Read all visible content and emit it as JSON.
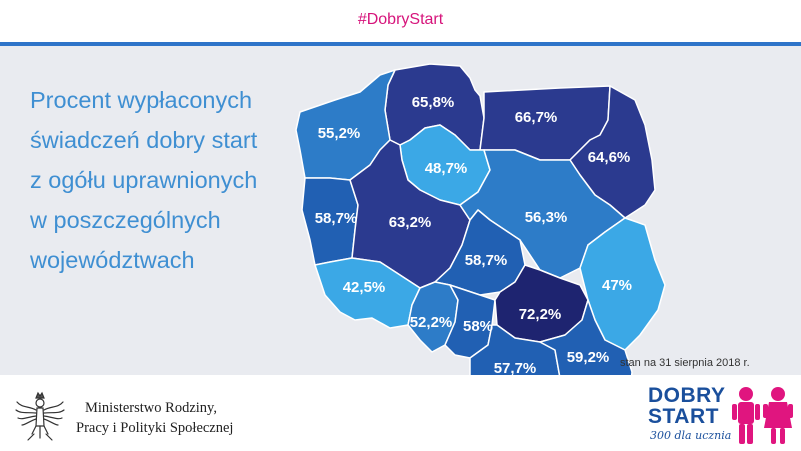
{
  "header": {
    "hashtag": "#DobryStart"
  },
  "headline": {
    "lines": [
      "Procent wypłaconych",
      "świadczeń dobry start",
      "z ogółu uprawnionych",
      "w poszczególnych",
      "województwach"
    ]
  },
  "map": {
    "regions": [
      {
        "id": "pomorskie",
        "label": "65,8%",
        "value": 65.8,
        "color": "#2b3a8f"
      },
      {
        "id": "warminsko-mazurskie",
        "label": "66,7%",
        "value": 66.7,
        "color": "#2b3a8f"
      },
      {
        "id": "podlaskie",
        "label": "64,6%",
        "value": 64.6,
        "color": "#2b3a8f"
      },
      {
        "id": "zachodniopomorskie",
        "label": "55,2%",
        "value": 55.2,
        "color": "#2d7cc8"
      },
      {
        "id": "kujawsko-pomorskie",
        "label": "48,7%",
        "value": 48.7,
        "color": "#3ba8e6"
      },
      {
        "id": "lubuskie",
        "label": "58,7%",
        "value": 58.7,
        "color": "#2160b3"
      },
      {
        "id": "wielkopolskie",
        "label": "63,2%",
        "value": 63.2,
        "color": "#2b3a8f"
      },
      {
        "id": "mazowieckie",
        "label": "56,3%",
        "value": 56.3,
        "color": "#2d7cc8"
      },
      {
        "id": "lodzkie",
        "label": "58,7%",
        "value": 58.7,
        "color": "#2160b3"
      },
      {
        "id": "lubelskie",
        "label": "47%",
        "value": 47,
        "color": "#3ba8e6"
      },
      {
        "id": "dolnoslaskie",
        "label": "42,5%",
        "value": 42.5,
        "color": "#3ba8e6"
      },
      {
        "id": "opolskie",
        "label": "52,2%",
        "value": 52.2,
        "color": "#2d7cc8"
      },
      {
        "id": "slaskie",
        "label": "58%",
        "value": 58,
        "color": "#2160b3"
      },
      {
        "id": "swietokrzyskie",
        "label": "72,2%",
        "value": 72.2,
        "color": "#1e2470"
      },
      {
        "id": "malopolskie",
        "label": "57,7%",
        "value": 57.7,
        "color": "#2160b3"
      },
      {
        "id": "podkarpackie",
        "label": "59,2%",
        "value": 59.2,
        "color": "#2160b3"
      }
    ]
  },
  "footnote": "stan na 31 sierpnia 2018 r.",
  "ministry": {
    "line1": "Ministerstwo Rodziny,",
    "line2": "Pracy i Polityki Społecznej",
    "emblem_icon": "white-eagle-emblem-icon"
  },
  "logo": {
    "line1": "DOBRY",
    "line2": "START",
    "tagline": "300 dla ucznia",
    "kids_icon": "two-pupils-icon",
    "accent_color": "#e0157f"
  }
}
